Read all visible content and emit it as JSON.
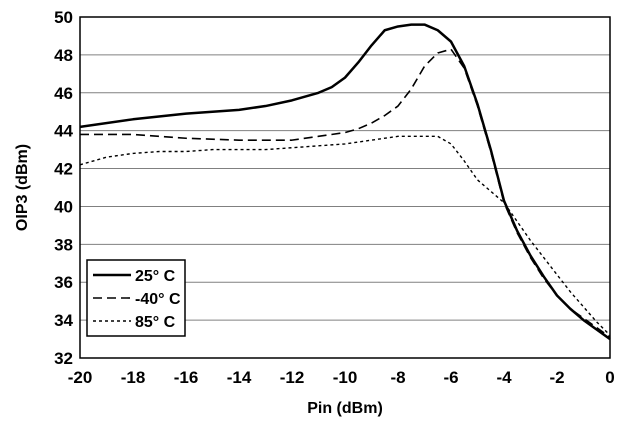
{
  "chart_data": {
    "type": "line",
    "xlabel": "Pin (dBm)",
    "ylabel": "OIP3 (dBm)",
    "xlim": [
      -20,
      0
    ],
    "ylim": [
      32,
      50
    ],
    "x_ticks": [
      -20,
      -18,
      -16,
      -14,
      -12,
      -10,
      -8,
      -6,
      -4,
      -2,
      0
    ],
    "y_ticks": [
      32,
      34,
      36,
      38,
      40,
      42,
      44,
      46,
      48,
      50
    ],
    "grid": "horizontal",
    "legend_position": "bottom-left",
    "series": [
      {
        "name": "25° C",
        "style": "solid",
        "x": [
          -20,
          -18,
          -16,
          -14,
          -13,
          -12,
          -11,
          -10.5,
          -10,
          -9.5,
          -9,
          -8.5,
          -8,
          -7.5,
          -7,
          -6.5,
          -6,
          -5.5,
          -5,
          -4.5,
          -4,
          -3.5,
          -3,
          -2.5,
          -2,
          -1.5,
          -1,
          -0.5,
          0
        ],
        "y": [
          44.2,
          44.6,
          44.9,
          45.1,
          45.3,
          45.6,
          46.0,
          46.3,
          46.8,
          47.6,
          48.5,
          49.3,
          49.5,
          49.6,
          49.6,
          49.3,
          48.7,
          47.4,
          45.4,
          43.0,
          40.3,
          38.7,
          37.4,
          36.3,
          35.3,
          34.6,
          34.0,
          33.5,
          33.0
        ]
      },
      {
        "name": "-40° C",
        "style": "dashed",
        "x": [
          -20,
          -18,
          -16,
          -14,
          -12,
          -11,
          -10,
          -9.5,
          -9,
          -8.5,
          -8,
          -7.5,
          -7,
          -6.5,
          -6,
          -5.5,
          -5,
          -4.5,
          -4,
          -3.5,
          -3,
          -2.5,
          -2,
          -1.5,
          -1,
          -0.5,
          0
        ],
        "y": [
          43.8,
          43.8,
          43.6,
          43.5,
          43.5,
          43.7,
          43.9,
          44.1,
          44.4,
          44.8,
          45.3,
          46.2,
          47.4,
          48.1,
          48.3,
          47.3,
          45.3,
          42.9,
          40.2,
          38.6,
          37.3,
          36.2,
          35.3,
          34.6,
          34.1,
          33.6,
          33.1
        ]
      },
      {
        "name": "85° C",
        "style": "dotted",
        "x": [
          -20,
          -19,
          -18,
          -17,
          -16,
          -15,
          -14,
          -13,
          -12,
          -11,
          -10,
          -9,
          -8,
          -7,
          -6.5,
          -6,
          -5.5,
          -5,
          -4.5,
          -4,
          -3.5,
          -3,
          -2.5,
          -2,
          -1.5,
          -1,
          -0.5,
          0
        ],
        "y": [
          42.2,
          42.6,
          42.8,
          42.9,
          42.9,
          43.0,
          43.0,
          43.0,
          43.1,
          43.2,
          43.3,
          43.5,
          43.7,
          43.7,
          43.7,
          43.3,
          42.4,
          41.4,
          40.8,
          40.2,
          39.2,
          38.2,
          37.3,
          36.4,
          35.5,
          34.7,
          33.9,
          33.2
        ]
      }
    ]
  }
}
